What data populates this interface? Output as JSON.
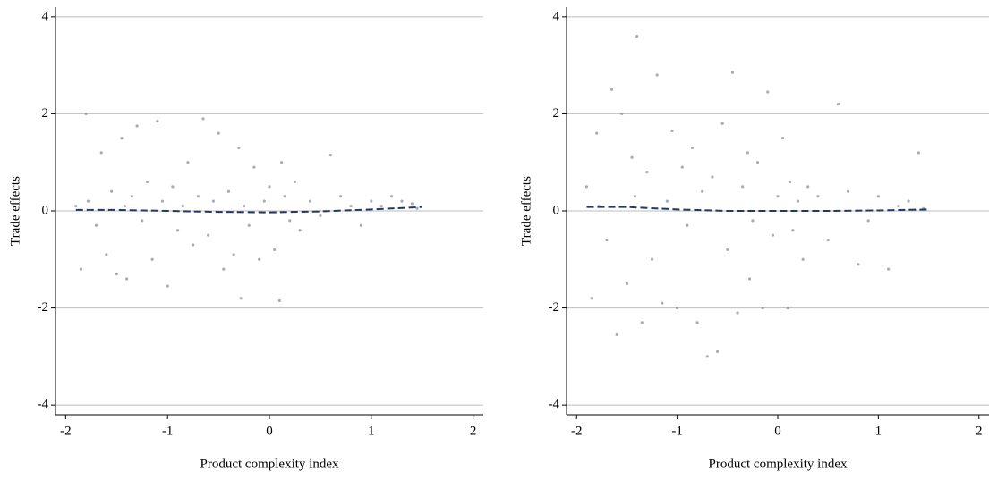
{
  "chart_data": [
    {
      "type": "scatter",
      "xlabel": "Product complexity index",
      "ylabel": "Trade effects",
      "xlim": [
        -2.1,
        2.1
      ],
      "ylim": [
        -4.2,
        4.2
      ],
      "xticks": [
        -2,
        -1,
        0,
        1,
        2
      ],
      "yticks": [
        -4,
        -2,
        0,
        2,
        4
      ],
      "grid": true,
      "points": {
        "color": "#8a8fa3",
        "x": [
          -1.9,
          -1.85,
          -1.8,
          -1.78,
          -1.7,
          -1.65,
          -1.6,
          -1.55,
          -1.5,
          -1.45,
          -1.42,
          -1.4,
          -1.35,
          -1.3,
          -1.25,
          -1.2,
          -1.15,
          -1.1,
          -1.05,
          -1.0,
          -0.95,
          -0.9,
          -0.85,
          -0.8,
          -0.75,
          -0.7,
          -0.65,
          -0.6,
          -0.55,
          -0.5,
          -0.45,
          -0.4,
          -0.35,
          -0.3,
          -0.28,
          -0.25,
          -0.2,
          -0.15,
          -0.1,
          -0.05,
          0.0,
          0.05,
          0.1,
          0.12,
          0.15,
          0.2,
          0.25,
          0.3,
          0.4,
          0.5,
          0.6,
          0.7,
          0.8,
          0.9,
          1.0,
          1.1,
          1.2,
          1.3,
          1.4,
          1.45
        ],
        "y": [
          0.1,
          -1.2,
          2.0,
          0.2,
          -0.3,
          1.2,
          -0.9,
          0.4,
          -1.3,
          1.5,
          0.1,
          -1.4,
          0.3,
          1.75,
          -0.2,
          0.6,
          -1.0,
          1.85,
          0.2,
          -1.55,
          0.5,
          -0.4,
          0.1,
          1.0,
          -0.7,
          0.3,
          1.9,
          -0.5,
          0.2,
          1.6,
          -1.2,
          0.4,
          -0.9,
          1.3,
          -1.8,
          0.1,
          -0.3,
          0.9,
          -1.0,
          0.2,
          0.5,
          -0.8,
          -1.85,
          1.0,
          0.3,
          -0.2,
          0.6,
          -0.4,
          0.2,
          -0.1,
          1.15,
          0.3,
          0.1,
          -0.3,
          0.2,
          0.1,
          0.3,
          0.2,
          0.15,
          0.05
        ]
      },
      "fit": {
        "color": "#1f3864",
        "x": [
          -1.9,
          -1.5,
          -1.0,
          -0.5,
          0.0,
          0.5,
          1.0,
          1.5
        ],
        "y": [
          0.02,
          0.02,
          0.0,
          -0.02,
          -0.03,
          -0.01,
          0.03,
          0.08
        ]
      }
    },
    {
      "type": "scatter",
      "xlabel": "Product complexity index",
      "ylabel": "Trade effects",
      "xlim": [
        -2.1,
        2.1
      ],
      "ylim": [
        -4.2,
        4.2
      ],
      "xticks": [
        -2,
        -1,
        0,
        1,
        2
      ],
      "yticks": [
        -4,
        -2,
        0,
        2,
        4
      ],
      "grid": true,
      "points": {
        "color": "#8a8fa3",
        "x": [
          -1.9,
          -1.85,
          -1.8,
          -1.78,
          -1.7,
          -1.65,
          -1.6,
          -1.55,
          -1.5,
          -1.45,
          -1.42,
          -1.4,
          -1.35,
          -1.3,
          -1.25,
          -1.2,
          -1.15,
          -1.1,
          -1.05,
          -1.0,
          -0.95,
          -0.9,
          -0.85,
          -0.8,
          -0.75,
          -0.7,
          -0.65,
          -0.6,
          -0.55,
          -0.5,
          -0.45,
          -0.4,
          -0.35,
          -0.3,
          -0.28,
          -0.25,
          -0.2,
          -0.15,
          -0.1,
          -0.05,
          0.0,
          0.05,
          0.1,
          0.12,
          0.15,
          0.2,
          0.25,
          0.3,
          0.4,
          0.5,
          0.6,
          0.7,
          0.8,
          0.9,
          1.0,
          1.1,
          1.2,
          1.3,
          1.4,
          1.45
        ],
        "y": [
          0.5,
          -1.8,
          1.6,
          0.1,
          -0.6,
          2.5,
          -2.55,
          2.0,
          -1.5,
          1.1,
          0.3,
          3.6,
          -2.3,
          0.8,
          -1.0,
          2.8,
          -1.9,
          0.2,
          1.65,
          -2.0,
          0.9,
          -0.3,
          1.3,
          -2.3,
          0.4,
          -3.0,
          0.7,
          -2.9,
          1.8,
          -0.8,
          2.85,
          -2.1,
          0.5,
          1.2,
          -1.4,
          -0.2,
          1.0,
          -2.0,
          2.45,
          -0.5,
          0.3,
          1.5,
          -2.0,
          0.6,
          -0.4,
          0.2,
          -1.0,
          0.5,
          0.3,
          -0.6,
          2.2,
          0.4,
          -1.1,
          -0.2,
          0.3,
          -1.2,
          0.1,
          0.2,
          1.2,
          0.05
        ]
      },
      "fit": {
        "color": "#1f3864",
        "x": [
          -1.9,
          -1.5,
          -1.0,
          -0.5,
          0.0,
          0.5,
          1.0,
          1.5
        ],
        "y": [
          0.08,
          0.08,
          0.03,
          0.0,
          0.0,
          0.0,
          0.01,
          0.03
        ]
      }
    }
  ]
}
